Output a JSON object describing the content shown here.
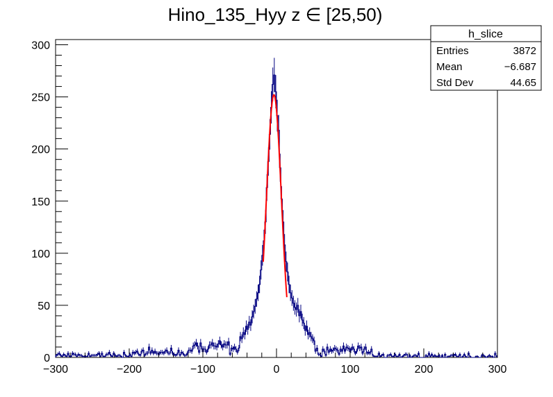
{
  "chart_data": {
    "type": "histogram",
    "title": "Hino_135_Hyy z  ∈ [25,50)",
    "xlabel": "",
    "ylabel": "",
    "xlim": [
      -300,
      300
    ],
    "ylim": [
      0,
      305
    ],
    "x_ticks": [
      -300,
      -200,
      -100,
      0,
      100,
      200,
      300
    ],
    "x_tick_labels": [
      "−300",
      "−200",
      "−100",
      "0",
      "100",
      "200",
      "300"
    ],
    "y_ticks": [
      0,
      50,
      100,
      150,
      200,
      250,
      300
    ],
    "y_tick_labels": [
      "0",
      "50",
      "100",
      "150",
      "200",
      "250",
      "300"
    ],
    "grid": false,
    "series": [
      {
        "name": "h_slice",
        "style": "step-with-errors",
        "color": "#000080",
        "bin_width": 2,
        "bins": [
          {
            "x": -50,
            "y": 20
          },
          {
            "x": -48,
            "y": 18
          },
          {
            "x": -46,
            "y": 24
          },
          {
            "x": -44,
            "y": 22
          },
          {
            "x": -42,
            "y": 30
          },
          {
            "x": -40,
            "y": 27
          },
          {
            "x": -38,
            "y": 34
          },
          {
            "x": -36,
            "y": 31
          },
          {
            "x": -34,
            "y": 39
          },
          {
            "x": -32,
            "y": 44
          },
          {
            "x": -30,
            "y": 49
          },
          {
            "x": -28,
            "y": 56
          },
          {
            "x": -26,
            "y": 62
          },
          {
            "x": -24,
            "y": 70
          },
          {
            "x": -22,
            "y": 84
          },
          {
            "x": -20,
            "y": 98
          },
          {
            "x": -18,
            "y": 112
          },
          {
            "x": -16,
            "y": 130
          },
          {
            "x": -14,
            "y": 163
          },
          {
            "x": -12,
            "y": 188
          },
          {
            "x": -10,
            "y": 214
          },
          {
            "x": -8,
            "y": 240
          },
          {
            "x": -6,
            "y": 262
          },
          {
            "x": -4,
            "y": 271
          },
          {
            "x": -2,
            "y": 255
          },
          {
            "x": 0,
            "y": 232
          },
          {
            "x": 2,
            "y": 218
          },
          {
            "x": 4,
            "y": 182
          },
          {
            "x": 6,
            "y": 152
          },
          {
            "x": 8,
            "y": 130
          },
          {
            "x": 10,
            "y": 108
          },
          {
            "x": 12,
            "y": 92
          },
          {
            "x": 14,
            "y": 82
          },
          {
            "x": 16,
            "y": 70
          },
          {
            "x": 18,
            "y": 62
          },
          {
            "x": 20,
            "y": 57
          },
          {
            "x": 22,
            "y": 52
          },
          {
            "x": 24,
            "y": 48
          },
          {
            "x": 26,
            "y": 46
          },
          {
            "x": 28,
            "y": 50
          },
          {
            "x": 30,
            "y": 40
          },
          {
            "x": 32,
            "y": 44
          },
          {
            "x": 34,
            "y": 36
          },
          {
            "x": 36,
            "y": 33
          },
          {
            "x": 38,
            "y": 26
          },
          {
            "x": 40,
            "y": 30
          },
          {
            "x": 42,
            "y": 22
          },
          {
            "x": 44,
            "y": 24
          },
          {
            "x": 46,
            "y": 20
          },
          {
            "x": 48,
            "y": 18
          },
          {
            "x": 50,
            "y": 16
          }
        ],
        "tails": [
          {
            "x_range": [
              -300,
              -200
            ],
            "typical": 2
          },
          {
            "x_range": [
              -200,
              -120
            ],
            "typical": 4
          },
          {
            "x_range": [
              -120,
              -50
            ],
            "typical": 10
          },
          {
            "x_range": [
              50,
              130
            ],
            "typical": 7
          },
          {
            "x_range": [
              130,
              300
            ],
            "typical": 1.5
          }
        ]
      },
      {
        "name": "fit",
        "style": "line",
        "color": "#ff0000",
        "function": "gaus",
        "x_range": [
          -18,
          14
        ],
        "constant": 252,
        "mean": -3.5,
        "sigma": 10.2
      }
    ],
    "stats_box": {
      "title": "h_slice",
      "rows": [
        {
          "label": "Entries",
          "value": "3872"
        },
        {
          "label": "Mean",
          "value": "−6.687"
        },
        {
          "label": "Std Dev",
          "value": "44.65"
        }
      ]
    }
  }
}
